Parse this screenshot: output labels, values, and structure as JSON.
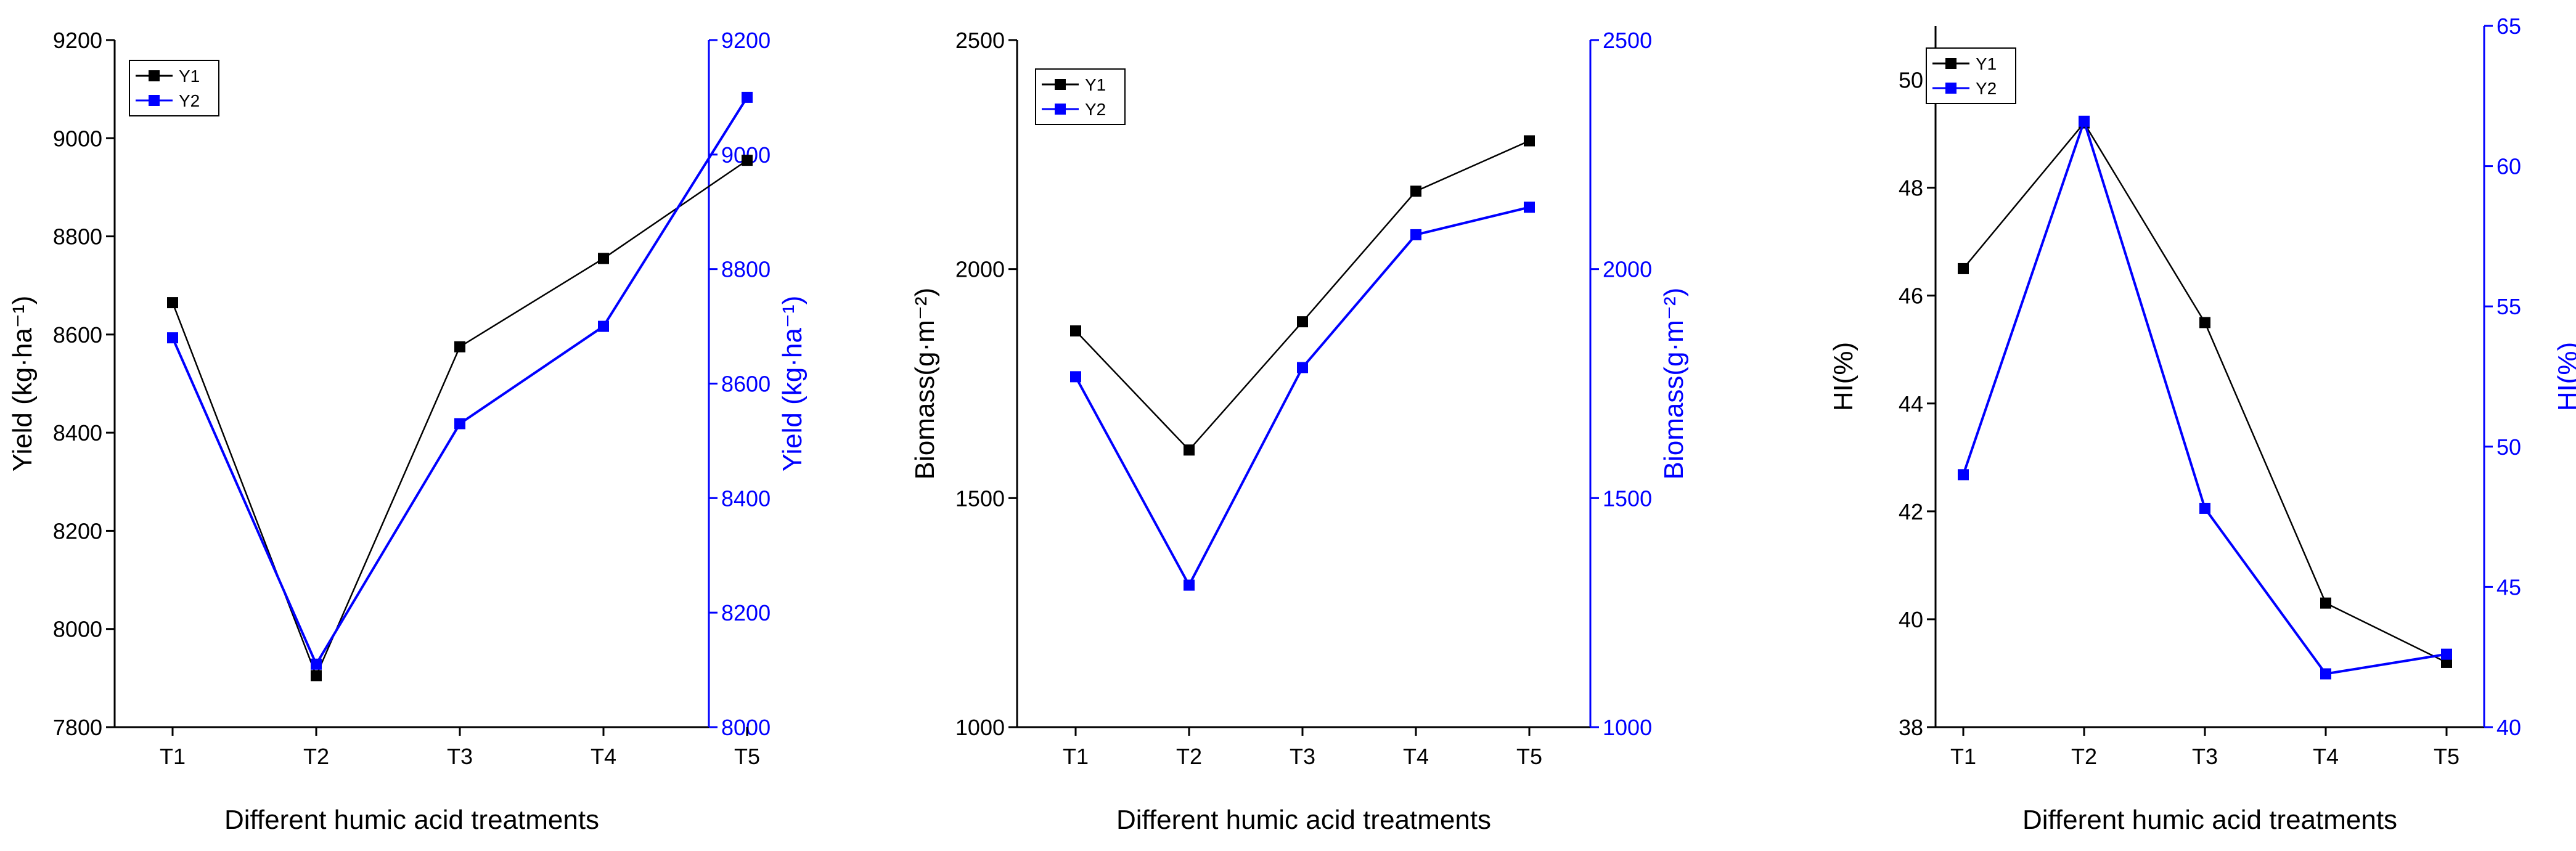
{
  "colors": {
    "y1": "#000000",
    "y2": "#0000ff",
    "axis": "#000000"
  },
  "chart_data": [
    {
      "type": "line",
      "categories": [
        "T1",
        "T2",
        "T3",
        "T4",
        "T5"
      ],
      "xlabel": "Different humic acid treatments",
      "ylabel_left": "Yield (kg·ha⁻¹)",
      "ylabel_right": "Yield (kg·ha⁻¹)",
      "ylim_left": [
        7800,
        9200
      ],
      "yticks_left": [
        7800,
        8000,
        8200,
        8400,
        8600,
        8800,
        9000,
        9200
      ],
      "ylim_right": [
        8000,
        9200
      ],
      "yticks_right": [
        8000,
        8200,
        8400,
        8600,
        8800,
        9000,
        9200
      ],
      "legend": "top-left",
      "series": [
        {
          "name": "Y1",
          "axis": "left",
          "values": [
            8665,
            7905,
            8575,
            8755,
            8955
          ]
        },
        {
          "name": "Y2",
          "axis": "right",
          "values": [
            8680,
            8110,
            8530,
            8700,
            9100
          ]
        }
      ]
    },
    {
      "type": "line",
      "categories": [
        "T1",
        "T2",
        "T3",
        "T4",
        "T5"
      ],
      "xlabel": "Different humic acid treatments",
      "ylabel_left": "Biomass(g·m⁻²)",
      "ylabel_right": "Biomass(g·m⁻²)",
      "ylim_left": [
        1000,
        2500
      ],
      "yticks_left": [
        1000,
        1500,
        2000,
        2500
      ],
      "ylim_right": [
        1000,
        2500
      ],
      "yticks_right": [
        1000,
        1500,
        2000,
        2500
      ],
      "legend": "top-left",
      "series": [
        {
          "name": "Y1",
          "axis": "left",
          "values": [
            1865,
            1605,
            1885,
            2170,
            2280
          ]
        },
        {
          "name": "Y2",
          "axis": "right",
          "values": [
            1765,
            1310,
            1785,
            2075,
            2135
          ]
        }
      ]
    },
    {
      "type": "line",
      "categories": [
        "T1",
        "T2",
        "T3",
        "T4",
        "T5"
      ],
      "xlabel": "Different humic acid treatments",
      "ylabel_left": "HI(%)",
      "ylabel_right": "HI(%)",
      "ylim_left": [
        38,
        51
      ],
      "yticks_left": [
        38,
        40,
        42,
        44,
        46,
        48,
        50
      ],
      "ylim_right": [
        40,
        65
      ],
      "yticks_right": [
        40,
        45,
        50,
        55,
        60,
        65
      ],
      "legend": "top-left",
      "series": [
        {
          "name": "Y1",
          "axis": "left",
          "values": [
            46.5,
            49.2,
            45.5,
            40.3,
            39.2
          ]
        },
        {
          "name": "Y2",
          "axis": "right",
          "values": [
            49.0,
            61.6,
            47.8,
            41.9,
            42.6
          ]
        }
      ]
    }
  ]
}
